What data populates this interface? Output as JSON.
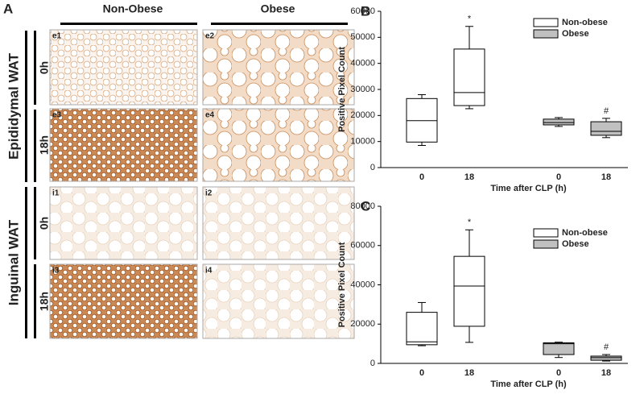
{
  "panel_a": {
    "label": "A",
    "columns": [
      "Non-Obese",
      "Obese"
    ],
    "groups": [
      {
        "label": "Epididymal WAT",
        "rows": [
          "0h",
          "18h"
        ]
      },
      {
        "label": "Inguinal WAT",
        "rows": [
          "0h",
          "18h"
        ]
      }
    ],
    "tiles": [
      "e1",
      "e2",
      "e3",
      "e4",
      "i1",
      "i2",
      "i3",
      "i4"
    ]
  },
  "chart_data": [
    {
      "type": "box",
      "panel_label": "B",
      "ylabel": "Positive Pixel Count",
      "xlabel": "Time after CLP (h)",
      "categories": [
        "0",
        "18",
        "0",
        "18"
      ],
      "ylim": [
        0,
        60000
      ],
      "yticks": [
        0,
        10000,
        20000,
        30000,
        40000,
        50000,
        60000
      ],
      "legend": "upper right",
      "annotations": [
        null,
        "*",
        null,
        "#"
      ],
      "series": [
        {
          "name": "Non-obese",
          "color": "#ffffff",
          "boxes": [
            {
              "min": 8500,
              "q1": 9800,
              "median": 18000,
              "q3": 26500,
              "max": 28000
            },
            {
              "min": 22600,
              "q1": 23800,
              "median": 28800,
              "q3": 45500,
              "max": 54200
            },
            null,
            null
          ]
        },
        {
          "name": "Obese",
          "color": "#c0c0c0",
          "boxes": [
            null,
            null,
            {
              "min": 15800,
              "q1": 16400,
              "median": 17300,
              "q3": 18600,
              "max": 19200
            },
            {
              "min": 11500,
              "q1": 12400,
              "median": 13900,
              "q3": 17600,
              "max": 18900
            }
          ]
        }
      ]
    },
    {
      "type": "box",
      "panel_label": "C",
      "ylabel": "Positive Pixel Count",
      "xlabel": "Time after CLP (h)",
      "categories": [
        "0",
        "18",
        "0",
        "18"
      ],
      "ylim": [
        0,
        80000
      ],
      "yticks": [
        0,
        20000,
        40000,
        60000,
        80000
      ],
      "legend": "upper right",
      "annotations": [
        null,
        "*",
        null,
        "#"
      ],
      "series": [
        {
          "name": "Non-obese",
          "color": "#ffffff",
          "boxes": [
            {
              "min": 9000,
              "q1": 9500,
              "median": 11000,
              "q3": 26000,
              "max": 31000
            },
            {
              "min": 10700,
              "q1": 18900,
              "median": 39400,
              "q3": 54500,
              "max": 68000
            },
            null,
            null
          ]
        },
        {
          "name": "Obese",
          "color": "#c0c0c0",
          "boxes": [
            null,
            null,
            {
              "min": 3000,
              "q1": 4500,
              "median": 10000,
              "q3": 10500,
              "max": 10800
            },
            {
              "min": 1200,
              "q1": 1600,
              "median": 2900,
              "q3": 3700,
              "max": 4500
            }
          ]
        }
      ]
    }
  ]
}
